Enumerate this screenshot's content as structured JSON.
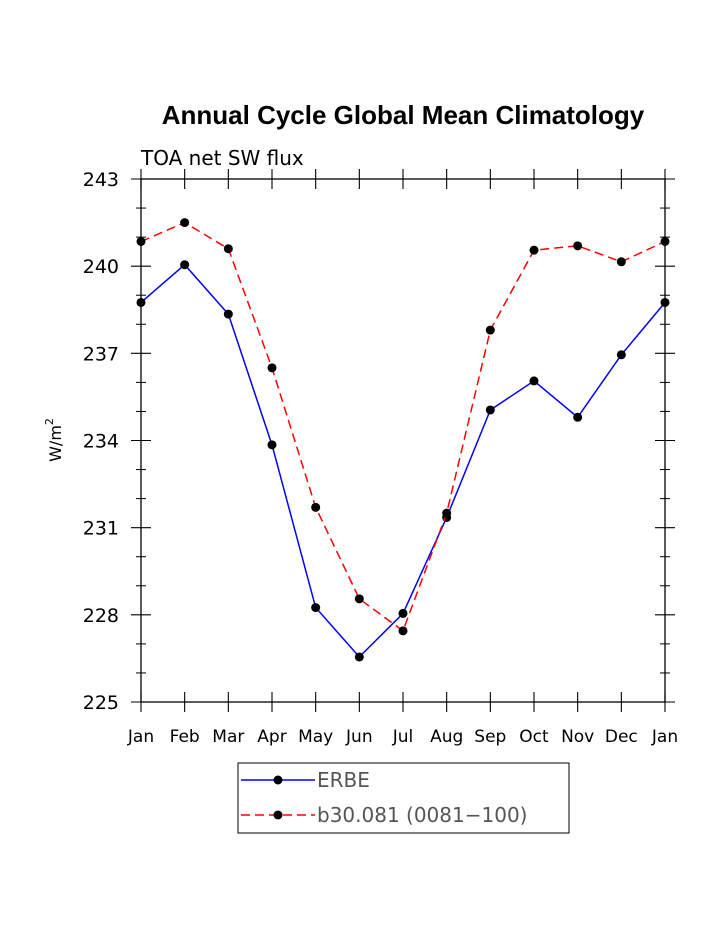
{
  "chart_data": {
    "type": "line",
    "title": "Annual Cycle Global Mean Climatology",
    "subtitle": "TOA net SW flux",
    "ylabel_base": "W/m",
    "ylabel_sup": "2",
    "xlabel": "",
    "categories": [
      "Jan",
      "Feb",
      "Mar",
      "Apr",
      "May",
      "Jun",
      "Jul",
      "Aug",
      "Sep",
      "Oct",
      "Nov",
      "Dec",
      "Jan"
    ],
    "ylim": [
      225,
      243
    ],
    "yticks": [
      225,
      228,
      231,
      234,
      237,
      240,
      243
    ],
    "grid": false,
    "legend_position": "bottom",
    "series": [
      {
        "name": "ERBE",
        "color": "#0000ff",
        "line_style": "solid",
        "values": [
          238.75,
          240.05,
          238.35,
          233.85,
          228.25,
          226.55,
          228.05,
          231.35,
          235.05,
          236.05,
          234.8,
          236.95,
          238.75
        ]
      },
      {
        "name": "b30.081 (0081−100)",
        "color": "#ff0000",
        "line_style": "dashed",
        "values": [
          240.85,
          241.5,
          240.6,
          236.5,
          231.7,
          228.55,
          227.45,
          231.5,
          237.8,
          240.55,
          240.7,
          240.15,
          240.85
        ]
      }
    ]
  }
}
